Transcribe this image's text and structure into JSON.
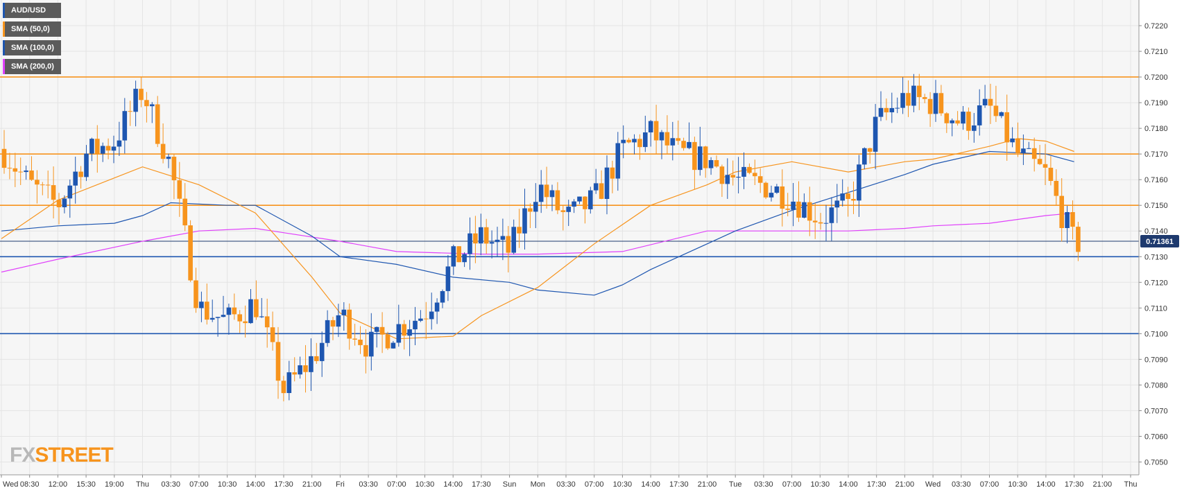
{
  "brand": {
    "prefix": "FX",
    "suffix": "STREET"
  },
  "legend": [
    {
      "label": "AUD/USD",
      "color": "#1e56b0"
    },
    {
      "label": "SMA (50,0)",
      "color": "#f7941d"
    },
    {
      "label": "SMA (100,0)",
      "color": "#1e56b0"
    },
    {
      "label": "SMA (200,0)",
      "color": "#e040fb"
    }
  ],
  "chart_data": {
    "type": "candlestick",
    "symbol": "AUD/USD",
    "ylim": [
      0.7045,
      0.723
    ],
    "y_ticks": [
      "0.7050",
      "0.7060",
      "0.7070",
      "0.7080",
      "0.7090",
      "0.7100",
      "0.7110",
      "0.7120",
      "0.7130",
      "0.7140",
      "0.7150",
      "0.7160",
      "0.7170",
      "0.7180",
      "0.7190",
      "0.7200",
      "0.7210",
      "0.7220"
    ],
    "x_ticks": [
      "Wed",
      "08:30",
      "12:00",
      "15:30",
      "19:00",
      "Thu",
      "03:30",
      "07:00",
      "10:30",
      "14:00",
      "17:30",
      "21:00",
      "Fri",
      "03:30",
      "07:00",
      "10:30",
      "14:00",
      "17:30",
      "Sun",
      "Mon",
      "03:30",
      "07:00",
      "10:30",
      "14:00",
      "17:30",
      "21:00",
      "Tue",
      "03:30",
      "07:00",
      "10:30",
      "14:00",
      "17:30",
      "21:00",
      "Wed",
      "03:30",
      "07:00",
      "10:30",
      "14:00",
      "17:30",
      "21:00",
      "Thu"
    ],
    "current_price": "0.7136",
    "current_price_label": "0.71361",
    "horizontal_levels": [
      {
        "value": 0.72,
        "color": "#f7941d"
      },
      {
        "value": 0.717,
        "color": "#f7941d"
      },
      {
        "value": 0.715,
        "color": "#f7941d"
      },
      {
        "value": 0.713,
        "color": "#1e56b0"
      },
      {
        "value": 0.71,
        "color": "#1e56b0"
      }
    ],
    "colors": {
      "up": "#1e56b0",
      "down": "#f7941d",
      "sma50": "#f7941d",
      "sma100": "#1e56b0",
      "sma200": "#e040fb",
      "current": "#1e3a6e"
    },
    "anchors": [
      [
        "Wed",
        0.7172
      ],
      [
        "08:30",
        0.7158
      ],
      [
        "12:00",
        0.715
      ],
      [
        "15:30",
        0.717
      ],
      [
        "19:00",
        0.7175
      ],
      [
        "Thu",
        0.7195
      ],
      [
        "03:30",
        0.7165
      ],
      [
        "07:00",
        0.711
      ],
      [
        "10:30",
        0.7105
      ],
      [
        "14:00",
        0.7112
      ],
      [
        "17:30",
        0.7078
      ],
      [
        "21:00",
        0.709
      ],
      [
        "Fri",
        0.7108
      ],
      [
        "03:30",
        0.7095
      ],
      [
        "07:00",
        0.7102
      ],
      [
        "10:30",
        0.7108
      ],
      [
        "14:00",
        0.7128
      ],
      [
        "17:30",
        0.7138
      ],
      [
        "Sun",
        0.7132
      ],
      [
        "Mon",
        0.7158
      ],
      [
        "03:30",
        0.7145
      ],
      [
        "07:00",
        0.7152
      ],
      [
        "10:30",
        0.7172
      ],
      [
        "14:00",
        0.7178
      ],
      [
        "17:30",
        0.717
      ],
      [
        "21:00",
        0.7168
      ],
      [
        "Tue",
        0.716
      ],
      [
        "03:30",
        0.7158
      ],
      [
        "07:00",
        0.7153
      ],
      [
        "10:30",
        0.7145
      ],
      [
        "14:00",
        0.715
      ],
      [
        "17:30",
        0.7182
      ],
      [
        "21:00",
        0.7192
      ],
      [
        "Wed",
        0.719
      ],
      [
        "03:30",
        0.7182
      ],
      [
        "07:00",
        0.7188
      ],
      [
        "10:30",
        0.717
      ],
      [
        "14:00",
        0.7162
      ],
      [
        "17:30",
        0.7135
      ],
      [
        "18:40",
        0.7136
      ]
    ],
    "sma50": [
      [
        "Wed",
        0.7137
      ],
      [
        "12:00",
        0.7152
      ],
      [
        "Thu",
        0.7165
      ],
      [
        "07:00",
        0.7158
      ],
      [
        "14:00",
        0.7147
      ],
      [
        "21:00",
        0.7122
      ],
      [
        "Fri",
        0.7108
      ],
      [
        "07:00",
        0.7098
      ],
      [
        "14:00",
        0.7099
      ],
      [
        "17:30",
        0.7107
      ],
      [
        "Mon",
        0.7118
      ],
      [
        "07:00",
        0.7135
      ],
      [
        "14:00",
        0.715
      ],
      [
        "21:00",
        0.7158
      ],
      [
        "Tue",
        0.7163
      ],
      [
        "07:00",
        0.7167
      ],
      [
        "14:00",
        0.7163
      ],
      [
        "21:00",
        0.7167
      ],
      [
        "Wed",
        0.7168
      ],
      [
        "07:00",
        0.7173
      ],
      [
        "10:30",
        0.7176
      ],
      [
        "14:00",
        0.7175
      ],
      [
        "17:30",
        0.7171
      ]
    ],
    "sma100": [
      [
        "Wed",
        0.714
      ],
      [
        "12:00",
        0.7142
      ],
      [
        "19:00",
        0.7143
      ],
      [
        "Thu",
        0.7146
      ],
      [
        "03:30",
        0.7151
      ],
      [
        "10:30",
        0.715
      ],
      [
        "14:00",
        0.715
      ],
      [
        "21:00",
        0.7138
      ],
      [
        "Fri",
        0.713
      ],
      [
        "07:00",
        0.7127
      ],
      [
        "14:00",
        0.7122
      ],
      [
        "Sun",
        0.712
      ],
      [
        "Mon",
        0.7117
      ],
      [
        "07:00",
        0.7115
      ],
      [
        "10:30",
        0.7119
      ],
      [
        "14:00",
        0.7125
      ],
      [
        "21:00",
        0.7135
      ],
      [
        "Tue",
        0.714
      ],
      [
        "07:00",
        0.7148
      ],
      [
        "14:00",
        0.7155
      ],
      [
        "21:00",
        0.7162
      ],
      [
        "Wed",
        0.7166
      ],
      [
        "07:00",
        0.7171
      ],
      [
        "14:00",
        0.717
      ],
      [
        "17:30",
        0.7167
      ]
    ],
    "sma200": [
      [
        "Wed",
        0.7124
      ],
      [
        "12:00",
        0.7129
      ],
      [
        "Thu",
        0.7136
      ],
      [
        "07:00",
        0.714
      ],
      [
        "14:00",
        0.7141
      ],
      [
        "Fri",
        0.7136
      ],
      [
        "07:00",
        0.7132
      ],
      [
        "17:30",
        0.7131
      ],
      [
        "Mon",
        0.7131
      ],
      [
        "10:30",
        0.7132
      ],
      [
        "21:00",
        0.714
      ],
      [
        "Tue",
        0.714
      ],
      [
        "07:00",
        0.714
      ],
      [
        "14:00",
        0.714
      ],
      [
        "21:00",
        0.7141
      ],
      [
        "Wed",
        0.7142
      ],
      [
        "07:00",
        0.7143
      ],
      [
        "14:00",
        0.7146
      ],
      [
        "17:30",
        0.7147
      ]
    ]
  }
}
